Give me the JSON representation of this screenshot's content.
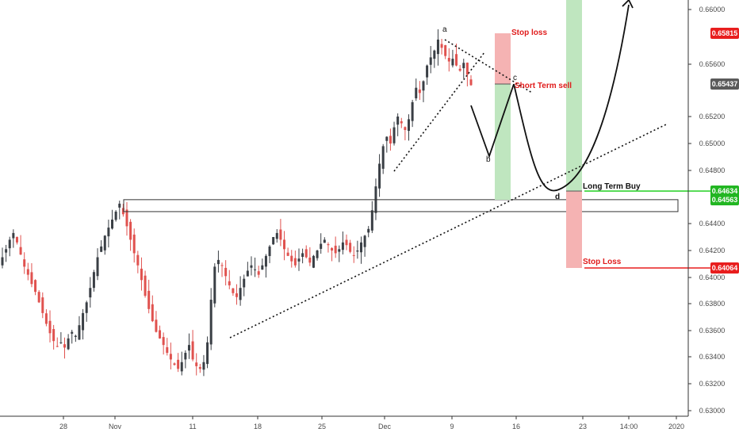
{
  "colors": {
    "background": "#ffffff",
    "bull": "#3a3f45",
    "bear": "#e0524f",
    "axis_text": "#4a4a4a",
    "stop_red": "#f5b3b3",
    "target_green": "#bfe6bf",
    "resistance_line": "#e81e1e",
    "support_line": "#22d022",
    "current_badge": "#5a5a5a",
    "annotation_red": "#e01b1b",
    "annotation_black": "#111111"
  },
  "chart_data": {
    "type": "candlestick",
    "title": "",
    "xlabel": "",
    "ylabel": "",
    "y_ticks": [
      "0.66000",
      "0.65600",
      "0.65200",
      "0.65000",
      "0.64800",
      "0.64400",
      "0.64200",
      "0.64000",
      "0.63800",
      "0.63600",
      "0.63400",
      "0.63200",
      "0.63000"
    ],
    "y_ticks_values": [
      0.66,
      0.656,
      0.652,
      0.65,
      0.648,
      0.644,
      0.642,
      0.64,
      0.638,
      0.636,
      0.634,
      0.632,
      0.63
    ],
    "x_ticks": [
      "28",
      "Nov",
      "11",
      "18",
      "25",
      "Dec",
      "9",
      "16",
      "23",
      "14:00",
      "2020"
    ],
    "ylim": [
      0.6295,
      0.6605
    ],
    "price_levels": [
      {
        "label": "0.65815",
        "value": 0.65815,
        "kind": "resistance"
      },
      {
        "label": "0.65437",
        "value": 0.65437,
        "kind": "current"
      },
      {
        "label": "0.64634",
        "value": 0.64634,
        "kind": "support"
      },
      {
        "label": "0.64563",
        "value": 0.64563,
        "kind": "zone"
      },
      {
        "label": "0.64064",
        "value": 0.64064,
        "kind": "stop"
      }
    ],
    "zone": {
      "low": 0.6449,
      "high": 0.6458
    },
    "annotations": {
      "point_a": "a",
      "point_b": "b",
      "point_c": "c",
      "point_d": "d",
      "stop_loss_short": "Stop loss",
      "short_term_sell": "Short Term sell",
      "long_term_buy": "Long Term Buy",
      "stop_loss_long": "Stop Loss"
    },
    "candles_path": [
      0.6415,
      0.6421,
      0.6428,
      0.6433,
      0.6426,
      0.6417,
      0.6408,
      0.6402,
      0.6395,
      0.6389,
      0.6381,
      0.6373,
      0.6365,
      0.6358,
      0.6352,
      0.6348,
      0.6351,
      0.6347,
      0.6354,
      0.6359,
      0.6356,
      0.6364,
      0.6373,
      0.6381,
      0.6392,
      0.6404,
      0.6415,
      0.6423,
      0.6431,
      0.6437,
      0.6443,
      0.6449,
      0.6455,
      0.6447,
      0.6438,
      0.6428,
      0.6418,
      0.6409,
      0.6398,
      0.6386,
      0.6376,
      0.6367,
      0.6359,
      0.6354,
      0.6349,
      0.6343,
      0.6338,
      0.6334,
      0.6331,
      0.6336,
      0.6343,
      0.6349,
      0.6338,
      0.6333,
      0.6331,
      0.6336,
      0.6351,
      0.6383,
      0.6408,
      0.6413,
      0.6409,
      0.6401,
      0.6394,
      0.6388,
      0.6385,
      0.6392,
      0.6399,
      0.6405,
      0.6409,
      0.6406,
      0.6402,
      0.6409,
      0.6416,
      0.6423,
      0.643,
      0.6433,
      0.6428,
      0.6421,
      0.6416,
      0.6412,
      0.6409,
      0.6414,
      0.6418,
      0.6415,
      0.6411,
      0.6416,
      0.642,
      0.6425,
      0.6428,
      0.6424,
      0.642,
      0.6418,
      0.6421,
      0.6426,
      0.6424,
      0.6419,
      0.6416,
      0.642,
      0.6426,
      0.6431,
      0.6436,
      0.645,
      0.6468,
      0.6485,
      0.6498,
      0.6505,
      0.65,
      0.6512,
      0.652,
      0.6515,
      0.651,
      0.6518,
      0.6531,
      0.6542,
      0.6538,
      0.6547,
      0.6559,
      0.6565,
      0.657,
      0.6578,
      0.6572,
      0.6566,
      0.6562,
      0.6564,
      0.6559,
      0.6555,
      0.6561,
      0.6552,
      0.6544
    ]
  }
}
